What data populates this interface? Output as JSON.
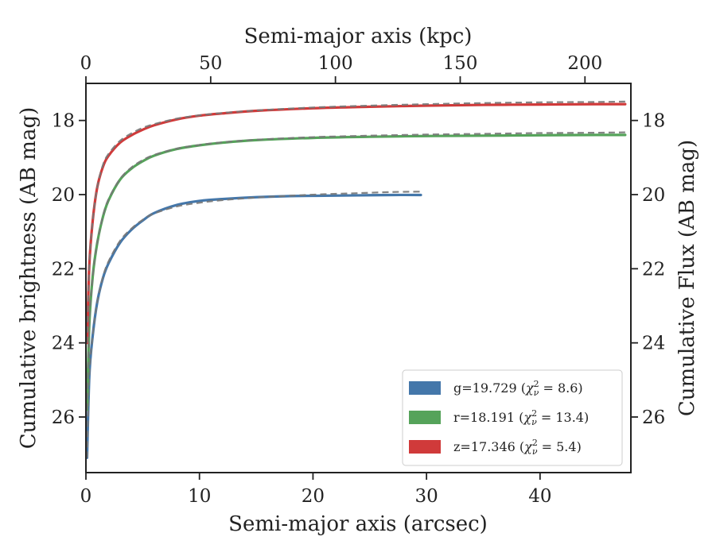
{
  "chart_data": {
    "type": "line",
    "xlabel": "Semi-major axis (arcsec)",
    "x2label": "Semi-major axis (kpc)",
    "ylabel": "Cumulative brightness (AB mag)",
    "y2label": "Cumulative Flux (AB mag)",
    "xlim": [
      0,
      48
    ],
    "x2lim": [
      0,
      218.4
    ],
    "ylim": [
      27.5,
      17.0
    ],
    "y_inverted": true,
    "xticks": [
      0,
      10,
      20,
      30,
      40
    ],
    "x2ticks": [
      0,
      50,
      100,
      150,
      200
    ],
    "yticks": [
      18,
      20,
      22,
      24,
      26
    ],
    "legend_position": "lower-right",
    "grid": false,
    "series": [
      {
        "name": "g=19.729 (χ²ν = 8.6)",
        "legend_main": "g=19.729 (",
        "legend_sym": "χ",
        "legend_sup": "2",
        "legend_sub": "ν",
        "legend_rest": " = 8.6)",
        "color": "#4477aa",
        "x": [
          0.1,
          0.3,
          0.6,
          1.0,
          1.5,
          2.0,
          3.0,
          4.0,
          5.0,
          6.0,
          8.0,
          10.0,
          12.0,
          15.0,
          18.0,
          21.0,
          24.0,
          27.0,
          29.5
        ],
        "y": [
          27.1,
          24.9,
          23.8,
          22.9,
          22.25,
          21.85,
          21.3,
          20.95,
          20.7,
          20.5,
          20.28,
          20.17,
          20.12,
          20.07,
          20.04,
          20.03,
          20.02,
          20.01,
          20.01
        ],
        "model_y": [
          27.1,
          24.9,
          23.8,
          22.9,
          22.22,
          21.8,
          21.25,
          20.92,
          20.68,
          20.51,
          20.32,
          20.22,
          20.15,
          20.08,
          20.03,
          19.99,
          19.96,
          19.93,
          19.92
        ]
      },
      {
        "name": "r=18.191 (χ²ν = 13.4)",
        "legend_main": "r=18.191 (",
        "legend_sym": "χ",
        "legend_sup": "2",
        "legend_sub": "ν",
        "legend_rest": " = 13.4)",
        "color": "#55a35a",
        "x": [
          0.1,
          0.3,
          0.6,
          1.0,
          1.5,
          2.0,
          3.0,
          4.0,
          5.0,
          6.0,
          8.0,
          10.0,
          12.0,
          15.0,
          20.0,
          25.0,
          30.0,
          35.0,
          40.0,
          45.0,
          47.5
        ],
        "y": [
          25.8,
          23.5,
          22.2,
          21.3,
          20.6,
          20.15,
          19.6,
          19.3,
          19.1,
          18.95,
          18.77,
          18.67,
          18.6,
          18.53,
          18.47,
          18.44,
          18.42,
          18.41,
          18.4,
          18.39,
          18.39
        ],
        "model_y": [
          25.8,
          23.5,
          22.2,
          21.3,
          20.58,
          20.12,
          19.58,
          19.27,
          19.07,
          18.93,
          18.76,
          18.66,
          18.59,
          18.52,
          18.45,
          18.41,
          18.38,
          18.36,
          18.34,
          18.33,
          18.32
        ]
      },
      {
        "name": "z=17.346 (χ²ν = 5.4)",
        "legend_main": "z=17.346 (",
        "legend_sym": "χ",
        "legend_sup": "2",
        "legend_sub": "ν",
        "legend_rest": " = 5.4)",
        "color": "#d03a3a",
        "x": [
          0.1,
          0.3,
          0.6,
          1.0,
          1.5,
          2.0,
          3.0,
          4.0,
          5.0,
          6.0,
          8.0,
          10.0,
          12.0,
          15.0,
          20.0,
          25.0,
          30.0,
          35.0,
          40.0,
          45.0,
          47.5
        ],
        "y": [
          24.0,
          21.9,
          20.7,
          19.8,
          19.25,
          18.95,
          18.6,
          18.4,
          18.25,
          18.13,
          17.97,
          17.87,
          17.81,
          17.74,
          17.67,
          17.63,
          17.6,
          17.58,
          17.57,
          17.56,
          17.56
        ],
        "model_y": [
          24.0,
          21.9,
          20.7,
          19.8,
          19.2,
          18.9,
          18.55,
          18.35,
          18.2,
          18.1,
          17.95,
          17.86,
          17.8,
          17.73,
          17.65,
          17.6,
          17.56,
          17.53,
          17.51,
          17.5,
          17.49
        ]
      }
    ]
  }
}
